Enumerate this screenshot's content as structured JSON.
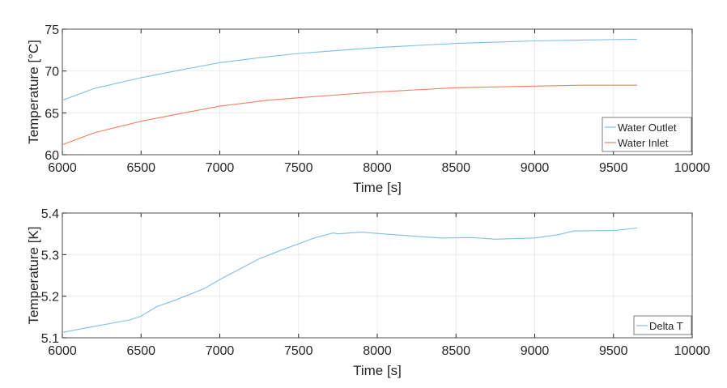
{
  "chart_data": [
    {
      "type": "line",
      "xlabel": "Time [s]",
      "ylabel": "Temperature [°C]",
      "xlim": [
        6000,
        10000
      ],
      "ylim": [
        60,
        75
      ],
      "xticks": [
        "6000",
        "6500",
        "7000",
        "7500",
        "8000",
        "8500",
        "9000",
        "9500",
        "10000"
      ],
      "yticks": [
        "60",
        "65",
        "70",
        "75"
      ],
      "grid": true,
      "legend_position": "bottom-right",
      "series": [
        {
          "name": "Water Outlet",
          "color": "#7fbfe6",
          "x": [
            6000,
            6200,
            6500,
            6800,
            7000,
            7300,
            7500,
            8000,
            8500,
            9000,
            9300,
            9650
          ],
          "y": [
            66.5,
            67.9,
            69.2,
            70.3,
            71.0,
            71.7,
            72.1,
            72.8,
            73.3,
            73.6,
            73.7,
            73.8
          ]
        },
        {
          "name": "Water Inlet",
          "color": "#f08060",
          "x": [
            6000,
            6200,
            6500,
            6800,
            7000,
            7300,
            7500,
            8000,
            8500,
            9000,
            9300,
            9650
          ],
          "y": [
            61.2,
            62.6,
            64.0,
            65.1,
            65.8,
            66.5,
            66.8,
            67.5,
            68.0,
            68.2,
            68.3,
            68.3
          ]
        }
      ]
    },
    {
      "type": "line",
      "xlabel": "Time [s]",
      "ylabel": "Temperature [K]",
      "xlim": [
        6000,
        10000
      ],
      "ylim": [
        5.1,
        5.4
      ],
      "xticks": [
        "6000",
        "6500",
        "7000",
        "7500",
        "8000",
        "8500",
        "9000",
        "9500",
        "10000"
      ],
      "yticks": [
        "5.1",
        "5.2",
        "5.3",
        "5.4"
      ],
      "grid": true,
      "legend_position": "bottom-right",
      "series": [
        {
          "name": "Delta T",
          "color": "#7fbfe6",
          "x": [
            6000,
            6200,
            6430,
            6500,
            6600,
            6700,
            6900,
            7000,
            7250,
            7400,
            7600,
            7720,
            7750,
            7900,
            8100,
            8400,
            8600,
            8750,
            9000,
            9150,
            9250,
            9500,
            9650
          ],
          "y": [
            5.113,
            5.127,
            5.143,
            5.152,
            5.175,
            5.188,
            5.218,
            5.24,
            5.29,
            5.312,
            5.34,
            5.352,
            5.35,
            5.354,
            5.348,
            5.34,
            5.341,
            5.337,
            5.34,
            5.348,
            5.357,
            5.358,
            5.364
          ]
        }
      ]
    }
  ]
}
